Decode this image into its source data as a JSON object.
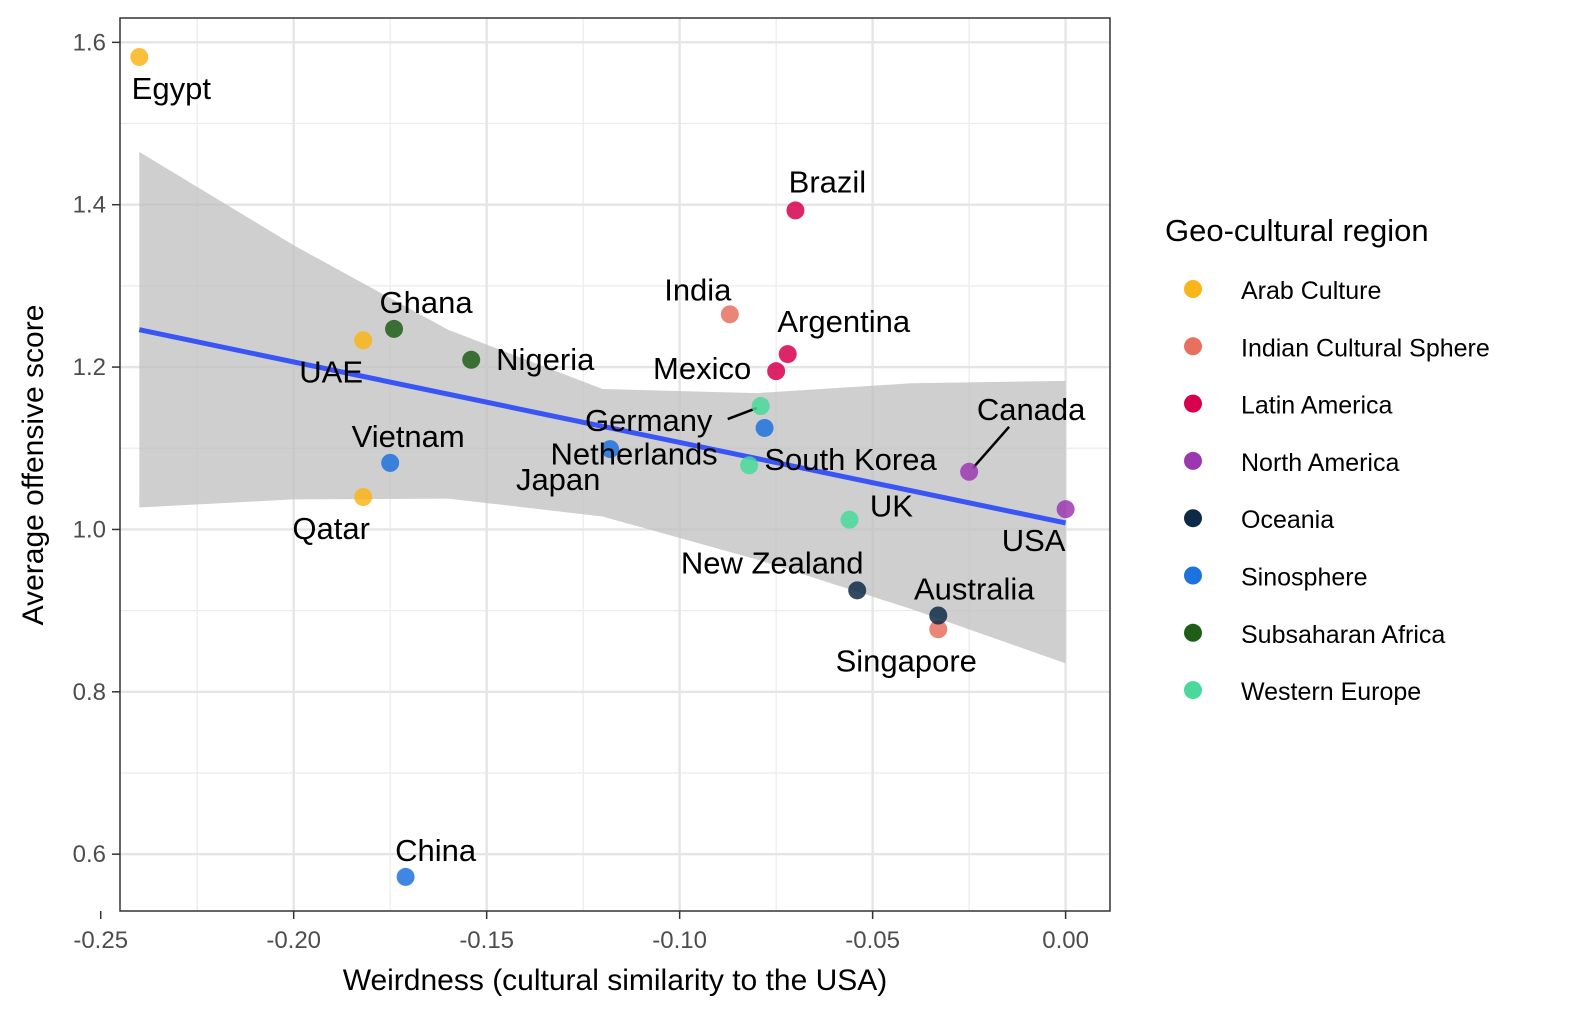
{
  "chart_data": {
    "type": "scatter",
    "xlabel": "Weirdness (cultural similarity to the USA)",
    "ylabel": "Average offensive score",
    "xlim": [
      -0.245,
      0.0115
    ],
    "ylim": [
      0.53,
      1.63
    ],
    "x_ticks": [
      -0.25,
      -0.2,
      -0.15,
      -0.1,
      -0.05,
      0.0
    ],
    "x_tick_labels": [
      "-0.25",
      "-0.20",
      "-0.15",
      "-0.10",
      "-0.05",
      "0.00"
    ],
    "y_ticks": [
      0.6,
      0.8,
      1.0,
      1.2,
      1.4,
      1.6
    ],
    "y_tick_labels": [
      "0.6",
      "0.8",
      "1.0",
      "1.2",
      "1.4",
      "1.6"
    ],
    "grid": true,
    "legend": {
      "title": "Geo-cultural region",
      "position": "right",
      "items": [
        {
          "name": "Arab Culture",
          "color": "#F9B51A"
        },
        {
          "name": "Indian Cultural Sphere",
          "color": "#E8705F"
        },
        {
          "name": "Latin America",
          "color": "#D6004F"
        },
        {
          "name": "North America",
          "color": "#9B38B0"
        },
        {
          "name": "Oceania",
          "color": "#0E2A47"
        },
        {
          "name": "Sinosphere",
          "color": "#1E72DF"
        },
        {
          "name": "Subsaharan Africa",
          "color": "#1F5E16"
        },
        {
          "name": "Western Europe",
          "color": "#48D99B"
        }
      ]
    },
    "points": [
      {
        "label": "Egypt",
        "x": -0.24,
        "y": 1.582,
        "region": "Arab Culture"
      },
      {
        "label": "UAE",
        "x": -0.182,
        "y": 1.233,
        "region": "Arab Culture"
      },
      {
        "label": "Qatar",
        "x": -0.182,
        "y": 1.04,
        "region": "Arab Culture"
      },
      {
        "label": "India",
        "x": -0.087,
        "y": 1.265,
        "region": "Indian Cultural Sphere"
      },
      {
        "label": "Singapore",
        "x": -0.033,
        "y": 0.877,
        "region": "Indian Cultural Sphere"
      },
      {
        "label": "Brazil",
        "x": -0.07,
        "y": 1.393,
        "region": "Latin America"
      },
      {
        "label": "Argentina",
        "x": -0.072,
        "y": 1.216,
        "region": "Latin America"
      },
      {
        "label": "Mexico",
        "x": -0.075,
        "y": 1.195,
        "region": "Latin America"
      },
      {
        "label": "Canada",
        "x": -0.025,
        "y": 1.071,
        "region": "North America"
      },
      {
        "label": "USA",
        "x": 0.0,
        "y": 1.025,
        "region": "North America"
      },
      {
        "label": "New Zealand",
        "x": -0.054,
        "y": 0.925,
        "region": "Oceania"
      },
      {
        "label": "Australia",
        "x": -0.033,
        "y": 0.894,
        "region": "Oceania"
      },
      {
        "label": "Vietnam",
        "x": -0.175,
        "y": 1.082,
        "region": "Sinosphere"
      },
      {
        "label": "Japan",
        "x": -0.118,
        "y": 1.099,
        "region": "Sinosphere"
      },
      {
        "label": "South Korea",
        "x": -0.078,
        "y": 1.125,
        "region": "Sinosphere"
      },
      {
        "label": "China",
        "x": -0.171,
        "y": 0.572,
        "region": "Sinosphere"
      },
      {
        "label": "Ghana",
        "x": -0.174,
        "y": 1.247,
        "region": "Subsaharan Africa"
      },
      {
        "label": "Nigeria",
        "x": -0.154,
        "y": 1.209,
        "region": "Subsaharan Africa"
      },
      {
        "label": "Germany",
        "x": -0.079,
        "y": 1.152,
        "region": "Western Europe"
      },
      {
        "label": "Netherlands",
        "x": -0.082,
        "y": 1.079,
        "region": "Western Europe"
      },
      {
        "label": "UK",
        "x": -0.056,
        "y": 1.012,
        "region": "Western Europe"
      }
    ],
    "trend_line": {
      "x": [
        -0.24,
        0.0
      ],
      "y": [
        1.246,
        1.008
      ]
    },
    "confidence_band": {
      "x": [
        -0.24,
        -0.2,
        -0.16,
        -0.12,
        -0.08,
        -0.04,
        0.0
      ],
      "upper": [
        1.465,
        1.35,
        1.246,
        1.173,
        1.168,
        1.18,
        1.183
      ],
      "lower": [
        1.027,
        1.037,
        1.038,
        1.016,
        0.963,
        0.902,
        0.835
      ]
    }
  }
}
